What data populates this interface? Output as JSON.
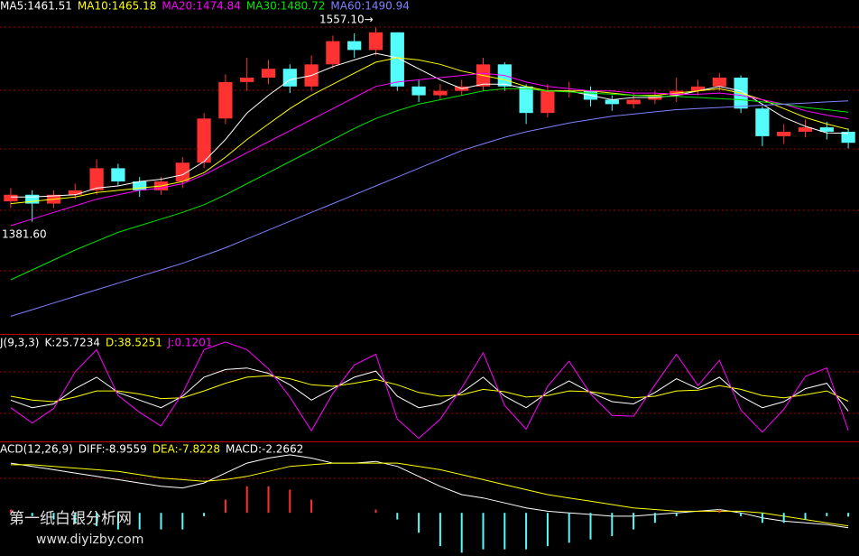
{
  "chart_data": [
    {
      "type": "candlestick",
      "up_color": "#ff3232",
      "down_color": "#54fcfc",
      "ylim": [
        1280,
        1570
      ],
      "annotations": [
        "1557.10→",
        "1381.60"
      ],
      "watermark": [
        "第一纸白银分析网",
        "www.diyizby.com"
      ],
      "open": [
        1400,
        1406,
        1398,
        1406,
        1410,
        1430,
        1418,
        1410,
        1418,
        1435,
        1475,
        1508,
        1512,
        1520,
        1504,
        1524,
        1545,
        1537,
        1553,
        1504,
        1496,
        1500,
        1504,
        1524,
        1504,
        1480,
        1500,
        1500,
        1492,
        1488,
        1492,
        1496,
        1500,
        1504,
        1512,
        1484,
        1459,
        1463,
        1467,
        1463
      ],
      "high": [
        1412,
        1410,
        1410,
        1416,
        1438,
        1434,
        1422,
        1422,
        1440,
        1480,
        1515,
        1530,
        1528,
        1524,
        1532,
        1550,
        1552,
        1557.1,
        1553,
        1510,
        1506,
        1510,
        1530,
        1526,
        1506,
        1506,
        1508,
        1504,
        1496,
        1498,
        1500,
        1512,
        1510,
        1516,
        1514,
        1486,
        1470,
        1474,
        1472,
        1466
      ],
      "low": [
        1394,
        1381.6,
        1394,
        1402,
        1406,
        1414,
        1404,
        1406,
        1412,
        1430,
        1470,
        1500,
        1506,
        1498,
        1500,
        1520,
        1530,
        1532,
        1500,
        1490,
        1492,
        1496,
        1500,
        1500,
        1470,
        1476,
        1494,
        1486,
        1482,
        1484,
        1488,
        1490,
        1496,
        1500,
        1480,
        1450,
        1452,
        1458,
        1456,
        1448
      ],
      "close": [
        1406,
        1398,
        1406,
        1410,
        1430,
        1418,
        1410,
        1418,
        1435,
        1475,
        1508,
        1512,
        1520,
        1504,
        1524,
        1545,
        1537,
        1553,
        1504,
        1496,
        1500,
        1504,
        1524,
        1504,
        1480,
        1500,
        1500,
        1492,
        1488,
        1492,
        1496,
        1500,
        1504,
        1512,
        1484,
        1459,
        1463,
        1467,
        1463,
        1453
      ],
      "series": [
        {
          "name": "MA5",
          "label": "MA5:1461.51",
          "color": "#ffffff",
          "values": [
            1404,
            1404,
            1405,
            1406,
            1412,
            1414,
            1418,
            1420,
            1424,
            1436,
            1456,
            1480,
            1496,
            1510,
            1514,
            1522,
            1528,
            1534,
            1530,
            1520,
            1510,
            1502,
            1506,
            1506,
            1502,
            1500,
            1500,
            1496,
            1492,
            1494,
            1494,
            1496,
            1500,
            1504,
            1500,
            1488,
            1476,
            1468,
            1462,
            1461.51
          ]
        },
        {
          "name": "MA10",
          "label": "MA10:1465.18",
          "color": "#ffff00",
          "values": [
            1398,
            1400,
            1402,
            1404,
            1408,
            1410,
            1412,
            1414,
            1418,
            1426,
            1440,
            1456,
            1470,
            1484,
            1496,
            1506,
            1516,
            1526,
            1530,
            1528,
            1524,
            1518,
            1514,
            1510,
            1504,
            1500,
            1500,
            1500,
            1498,
            1496,
            1496,
            1498,
            1500,
            1502,
            1498,
            1492,
            1484,
            1476,
            1470,
            1465.18
          ]
        },
        {
          "name": "MA20",
          "label": "MA20:1474.84",
          "color": "#ff00ff",
          "values": [
            1378,
            1384,
            1390,
            1396,
            1402,
            1406,
            1410,
            1412,
            1416,
            1424,
            1434,
            1444,
            1454,
            1464,
            1474,
            1484,
            1494,
            1504,
            1508,
            1510,
            1512,
            1514,
            1516,
            1514,
            1508,
            1504,
            1502,
            1500,
            1500,
            1498,
            1498,
            1497,
            1497,
            1498,
            1496,
            1492,
            1488,
            1482,
            1478,
            1474.84
          ]
        },
        {
          "name": "MA30",
          "label": "MA30:1480.72",
          "color": "#00e600",
          "values": [
            1329,
            1338,
            1347,
            1356,
            1364,
            1372,
            1378,
            1384,
            1390,
            1397,
            1406,
            1416,
            1426,
            1436,
            1446,
            1456,
            1466,
            1475,
            1482,
            1488,
            1492,
            1496,
            1500,
            1502,
            1502,
            1500,
            1499,
            1498,
            1497,
            1496,
            1495,
            1495,
            1494,
            1493,
            1492,
            1490,
            1488,
            1485,
            1483,
            1480.72
          ]
        },
        {
          "name": "MA60",
          "label": "MA60:1490.94",
          "color": "#8080ff",
          "values": [
            1296,
            1302,
            1308,
            1314,
            1320,
            1326,
            1332,
            1338,
            1344,
            1351,
            1358,
            1366,
            1374,
            1382,
            1390,
            1398,
            1406,
            1414,
            1422,
            1430,
            1438,
            1446,
            1452,
            1458,
            1463,
            1467,
            1471,
            1474,
            1477,
            1479,
            1481,
            1483,
            1484,
            1485,
            1486,
            1487,
            1488,
            1489,
            1490,
            1490.94
          ]
        }
      ]
    },
    {
      "type": "line",
      "title": "J(9,3,3)",
      "ylim": [
        -14,
        123
      ],
      "series": [
        {
          "name": "K",
          "label": "K:25.7234",
          "color": "#ffffff",
          "values": [
            40,
            30,
            35,
            55,
            70,
            50,
            40,
            30,
            45,
            70,
            80,
            82,
            75,
            60,
            40,
            55,
            70,
            78,
            45,
            30,
            35,
            50,
            70,
            45,
            30,
            50,
            65,
            50,
            38,
            35,
            50,
            68,
            55,
            70,
            45,
            30,
            38,
            55,
            62,
            25.7234
          ]
        },
        {
          "name": "D",
          "label": "D:38.5251",
          "color": "#ffff00",
          "values": [
            45,
            40,
            38,
            44,
            52,
            52,
            48,
            42,
            43,
            52,
            62,
            70,
            72,
            68,
            60,
            58,
            62,
            67,
            60,
            50,
            45,
            47,
            54,
            51,
            44,
            46,
            52,
            51,
            47,
            43,
            45,
            52,
            53,
            59,
            54,
            46,
            43,
            47,
            52,
            38.5251
          ]
        },
        {
          "name": "J",
          "label": "J:0.1201",
          "color": "#ff00ff",
          "values": [
            30,
            10,
            29,
            77,
            106,
            46,
            24,
            6,
            49,
            106,
            116,
            106,
            81,
            44,
            0,
            49,
            86,
            100,
            15,
            -10,
            15,
            56,
            102,
            33,
            2,
            58,
            91,
            48,
            20,
            19,
            60,
            100,
            59,
            92,
            27,
            -2,
            28,
            71,
            82,
            0.1201
          ]
        }
      ]
    },
    {
      "type": "macd",
      "title": "ACD(12,26,9)",
      "ylim": [
        -26,
        42
      ],
      "pos_color": "#ff3232",
      "neg_color": "#54fcfc",
      "series": [
        {
          "name": "DIFF",
          "label": "DIFF:-8.9559",
          "color": "#ffffff",
          "values": [
            30,
            28,
            26,
            24,
            22,
            20,
            18,
            16,
            15,
            18,
            24,
            30,
            33,
            35,
            33,
            30,
            30,
            31,
            28,
            22,
            16,
            11,
            9,
            6,
            3,
            1,
            0,
            -1,
            -2,
            -2,
            -1,
            0,
            1,
            2,
            0,
            -3,
            -5,
            -6,
            -7,
            -8.9559
          ]
        },
        {
          "name": "DEA",
          "label": "DEA:-7.8228",
          "color": "#ffff00",
          "values": [
            29,
            29,
            28,
            27,
            26,
            25,
            23,
            21,
            20,
            19,
            20,
            22,
            25,
            28,
            29,
            30,
            30,
            30,
            30,
            28,
            26,
            23,
            20,
            17,
            14,
            11,
            9,
            7,
            5,
            3,
            2,
            1,
            1,
            1,
            1,
            0,
            -2,
            -4,
            -6,
            -7.8228
          ]
        },
        {
          "name": "MACD",
          "label": "MACD:-2.2662",
          "color": "#ffffff",
          "bars": true,
          "values": [
            2,
            -2,
            -4,
            -6,
            -8,
            -10,
            -10,
            -10,
            -10,
            -2,
            8,
            16,
            16,
            14,
            8,
            0,
            0,
            2,
            -4,
            -12,
            -20,
            -24,
            -22,
            -22,
            -22,
            -20,
            -18,
            -16,
            -14,
            -10,
            -6,
            -2,
            0,
            2,
            -2,
            -6,
            -6,
            -4,
            -2,
            -2.2662
          ]
        }
      ]
    }
  ]
}
